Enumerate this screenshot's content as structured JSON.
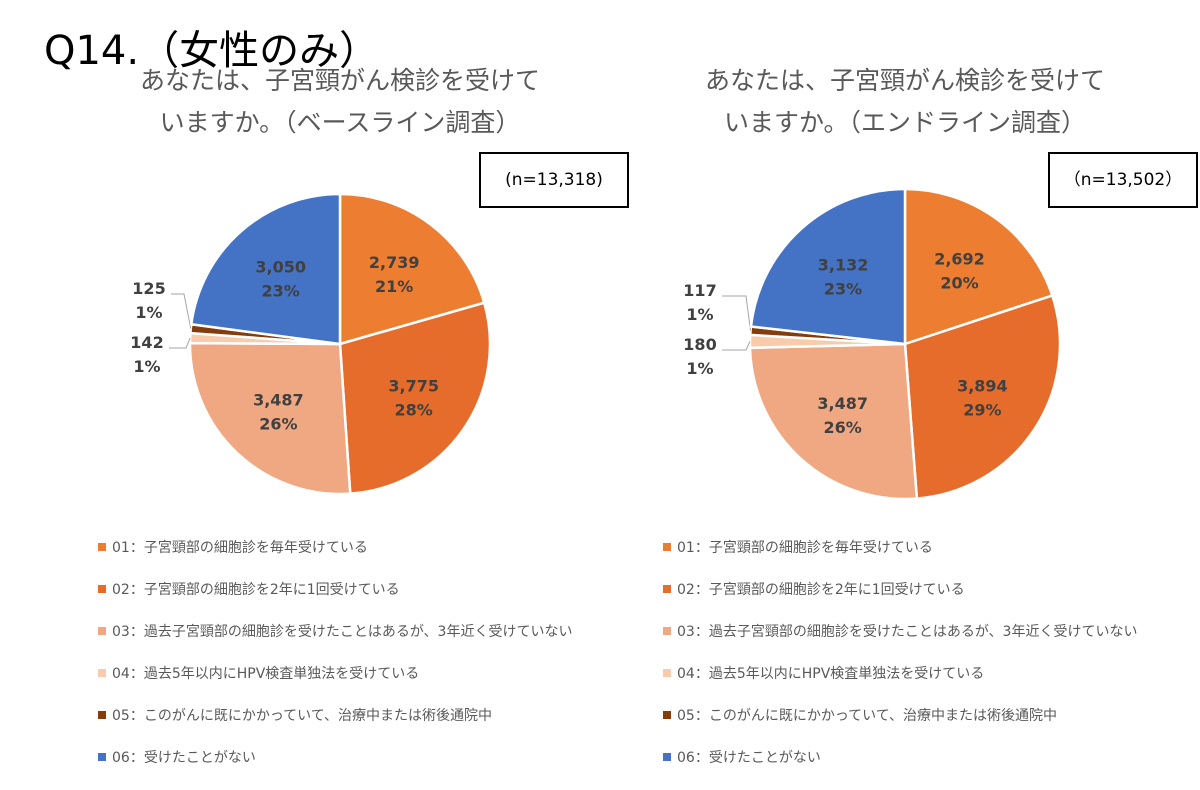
{
  "main_title": "Q14.（女性のみ）",
  "colors": [
    "#ED7D31",
    "#E66C2C",
    "#F0A882",
    "#F8CBAD",
    "#843C0C",
    "#4472C4"
  ],
  "legend": [
    "01：子宮頸部の細胞診を毎年受けている",
    "02：子宮頸部の細胞診を2年に1回受けている",
    "03：過去子宮頸部の細胞診を受けたことはあるが、3年近く受けていない",
    "04：過去5年以内にHPV検査単独法を受けている",
    "05：このがんに既にかかっていて、治療中または術後通院中",
    "06：受けたことがない"
  ],
  "chart_data": [
    {
      "type": "pie",
      "title_line1": "あなたは、子宮頸がん検診を受けて",
      "title_line2": "いますか。（ベースライン調査）",
      "n_label": "(n=13,318)",
      "categories": [
        "01",
        "02",
        "03",
        "04",
        "05",
        "06"
      ],
      "values": [
        2739,
        3775,
        3487,
        142,
        125,
        3050
      ],
      "value_labels": [
        "2,739",
        "3,775",
        "3,487",
        "142",
        "125",
        "3,050"
      ],
      "percent_labels": [
        "21%",
        "28%",
        "26%",
        "1%",
        "1%",
        "23%"
      ]
    },
    {
      "type": "pie",
      "title_line1": "あなたは、子宮頸がん検診を受けて",
      "title_line2": "いますか。（エンドライン調査）",
      "n_label": "（n=13,502）",
      "categories": [
        "01",
        "02",
        "03",
        "04",
        "05",
        "06"
      ],
      "values": [
        2692,
        3894,
        3487,
        180,
        117,
        3132
      ],
      "value_labels": [
        "2,692",
        "3,894",
        "3,487",
        "180",
        "117",
        "3,132"
      ],
      "percent_labels": [
        "20%",
        "29%",
        "26%",
        "1%",
        "1%",
        "23%"
      ]
    }
  ]
}
